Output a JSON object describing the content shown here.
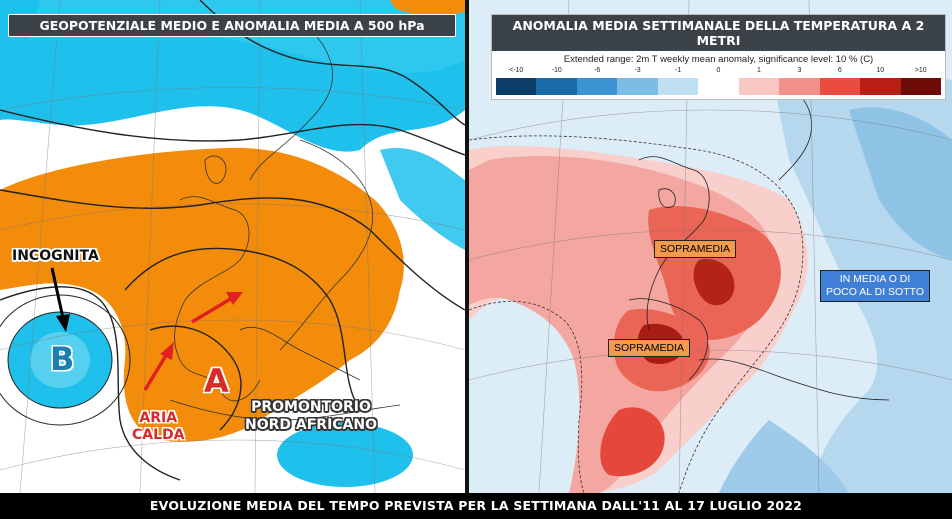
{
  "left_panel": {
    "title": "GEOPOTENZIALE MEDIO E ANOMALIA MEDIA A 500 hPa",
    "labels": {
      "incognita": "INCOGNITA",
      "low": "B",
      "high": "A",
      "aria_calda_1": "ARIA",
      "aria_calda_2": "CALDA",
      "promontorio_1": "PROMONTORIO",
      "promontorio_2": "NORD AFRICANO"
    },
    "colors": {
      "warm": "#f28c0a",
      "cold": "#1fc1ec",
      "arrow": "#e02020"
    }
  },
  "right_panel": {
    "title": "ANOMALIA MEDIA SETTIMANALE DELLA TEMPERATURA A 2 METRI",
    "subtitle": "Extended range: 2m T weekly mean anomaly, significance level: 10 % (C)",
    "scale_labels": [
      "<-10",
      "-10",
      "-6",
      "-3",
      "-1",
      "0",
      "1",
      "3",
      "6",
      "10",
      ">10"
    ],
    "scale_colors": [
      "#0b3d66",
      "#1b6aa8",
      "#3b94d1",
      "#7cbde5",
      "#bfe0f2",
      "#ffffff",
      "#f9c6c4",
      "#f2908a",
      "#e84d3f",
      "#b81f14",
      "#6e0b06"
    ],
    "labels": {
      "sopramedia_1": "SOPRAMEDIA",
      "sopramedia_2": "SOPRAMEDIA",
      "in_media_1": "IN MEDIA O DI",
      "in_media_2": "POCO AL DI SOTTO"
    },
    "colors": {
      "label_orange": "#f39a4c",
      "label_blue": "#3f7fd6"
    }
  },
  "footer": {
    "text": "EVOLUZIONE MEDIA DEL TEMPO PREVISTA PER LA SETTIMANA DALL'11 AL 17 LUGLIO 2022"
  }
}
